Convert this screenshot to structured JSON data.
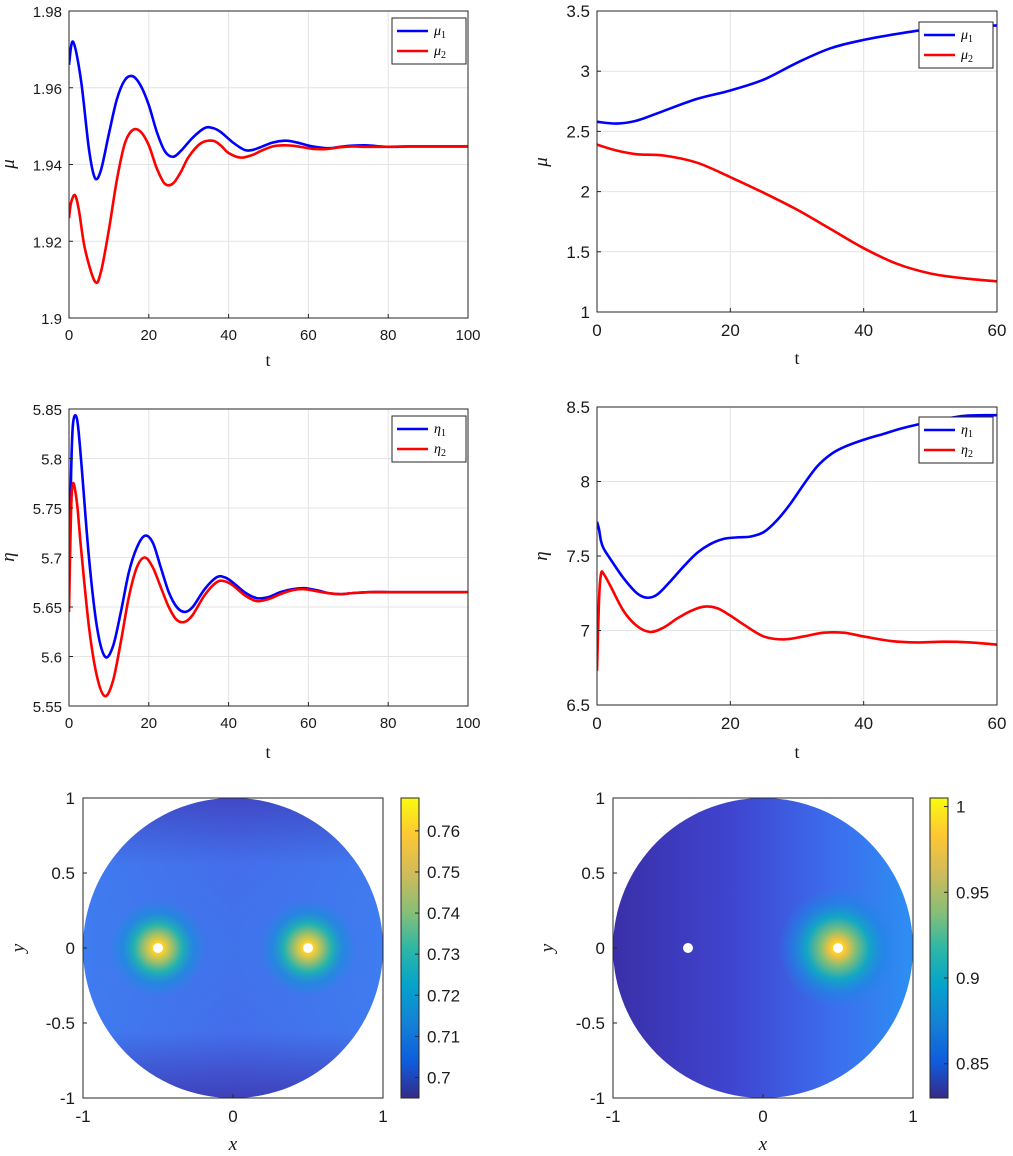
{
  "chart_data": [
    {
      "type": "line",
      "panel": "top-left",
      "xlabel": "t",
      "ylabel": "μ",
      "xlim": [
        0,
        100
      ],
      "ylim": [
        1.9,
        1.98
      ],
      "xticks": [
        "0",
        "20",
        "40",
        "60",
        "80",
        "100"
      ],
      "yticks": [
        "1.9",
        "1.92",
        "1.94",
        "1.96",
        "1.98"
      ],
      "legend_position": "top-right",
      "grid": true,
      "series": [
        {
          "name": "μ",
          "sub": "1",
          "color": "#0000ff",
          "x": [
            0,
            1,
            3,
            5,
            6.5,
            8,
            10,
            12,
            14,
            16,
            18,
            20,
            22,
            24,
            26,
            28,
            31,
            34,
            36,
            38,
            41,
            44,
            46,
            48,
            51,
            54,
            56,
            58,
            61,
            64,
            66,
            68,
            71,
            74,
            76,
            78,
            81,
            85,
            90,
            95,
            100
          ],
          "values": [
            1.966,
            1.972,
            1.962,
            1.944,
            1.9365,
            1.9385,
            1.948,
            1.957,
            1.962,
            1.963,
            1.9605,
            1.9555,
            1.9485,
            1.9435,
            1.942,
            1.9435,
            1.947,
            1.9495,
            1.9495,
            1.9485,
            1.9458,
            1.9438,
            1.9438,
            1.9445,
            1.9457,
            1.9462,
            1.946,
            1.9455,
            1.9447,
            1.9443,
            1.9443,
            1.9446,
            1.9449,
            1.945,
            1.9449,
            1.9447,
            1.9446,
            1.9447,
            1.9447,
            1.9447,
            1.9447
          ]
        },
        {
          "name": "μ",
          "sub": "2",
          "color": "#ff0000",
          "x": [
            0,
            0.5,
            1.5,
            2.5,
            4,
            6.5,
            8,
            10,
            12,
            14,
            16,
            18,
            20,
            22,
            24,
            26,
            28,
            30,
            33,
            36,
            38,
            40,
            43,
            46,
            48,
            51,
            54,
            56,
            58,
            61,
            64,
            66,
            68,
            71,
            74,
            76,
            80,
            85,
            90,
            95,
            100
          ],
          "values": [
            1.926,
            1.93,
            1.932,
            1.928,
            1.918,
            1.9095,
            1.912,
            1.923,
            1.936,
            1.9455,
            1.949,
            1.9485,
            1.945,
            1.939,
            1.935,
            1.935,
            1.938,
            1.942,
            1.9455,
            1.9462,
            1.945,
            1.943,
            1.9418,
            1.9425,
            1.9435,
            1.9447,
            1.945,
            1.9449,
            1.9446,
            1.9441,
            1.944,
            1.9442,
            1.9445,
            1.9447,
            1.9446,
            1.9446,
            1.9446,
            1.9447,
            1.9447,
            1.9447,
            1.9447
          ]
        }
      ]
    },
    {
      "type": "line",
      "panel": "top-right",
      "xlabel": "t",
      "ylabel": "μ",
      "xlim": [
        0,
        60
      ],
      "ylim": [
        1,
        3.5
      ],
      "xticks": [
        "0",
        "20",
        "40",
        "60"
      ],
      "yticks": [
        "1",
        "1.5",
        "2",
        "2.5",
        "3",
        "3.5"
      ],
      "legend_position": "top-right",
      "grid": true,
      "series": [
        {
          "name": "μ",
          "sub": "1",
          "color": "#0000ff",
          "x": [
            0,
            3,
            6,
            10,
            15,
            20,
            25,
            30,
            35,
            40,
            45,
            50,
            55,
            60
          ],
          "values": [
            2.58,
            2.565,
            2.59,
            2.67,
            2.77,
            2.84,
            2.93,
            3.07,
            3.19,
            3.26,
            3.31,
            3.35,
            3.37,
            3.38
          ]
        },
        {
          "name": "μ",
          "sub": "2",
          "color": "#ff0000",
          "x": [
            0,
            3,
            6,
            10,
            15,
            20,
            25,
            30,
            35,
            40,
            45,
            50,
            55,
            60
          ],
          "values": [
            2.39,
            2.34,
            2.31,
            2.3,
            2.24,
            2.12,
            1.99,
            1.85,
            1.69,
            1.53,
            1.4,
            1.32,
            1.28,
            1.255
          ]
        }
      ]
    },
    {
      "type": "line",
      "panel": "middle-left",
      "xlabel": "t",
      "ylabel": "η",
      "xlim": [
        0,
        100
      ],
      "ylim": [
        5.55,
        5.85
      ],
      "xticks": [
        "0",
        "20",
        "40",
        "60",
        "80",
        "100"
      ],
      "yticks": [
        "5.55",
        "5.6",
        "5.65",
        "5.7",
        "5.75",
        "5.8",
        "5.85"
      ],
      "legend_position": "top-right",
      "grid": true,
      "series": [
        {
          "name": "η",
          "sub": "1",
          "color": "#0000ff",
          "x": [
            0,
            0.5,
            1,
            2,
            3,
            5,
            7,
            9,
            11,
            13,
            15,
            17,
            19,
            21,
            23,
            25,
            27,
            29,
            31,
            34,
            37,
            39,
            41,
            44,
            47,
            50,
            53,
            56,
            59,
            62,
            65,
            68,
            71,
            75,
            80,
            85,
            90,
            95,
            100
          ],
          "values": [
            5.66,
            5.78,
            5.835,
            5.84,
            5.8,
            5.7,
            5.63,
            5.6,
            5.61,
            5.645,
            5.685,
            5.71,
            5.722,
            5.715,
            5.69,
            5.665,
            5.65,
            5.645,
            5.65,
            5.668,
            5.68,
            5.68,
            5.675,
            5.665,
            5.659,
            5.66,
            5.665,
            5.668,
            5.669,
            5.667,
            5.664,
            5.663,
            5.664,
            5.665,
            5.665,
            5.665,
            5.665,
            5.665,
            5.665
          ]
        },
        {
          "name": "η",
          "sub": "2",
          "color": "#ff0000",
          "x": [
            0,
            0.5,
            1,
            2,
            3,
            5,
            7,
            9,
            11,
            13,
            15,
            17,
            19,
            21,
            23,
            25,
            27,
            29,
            31,
            34,
            37,
            39,
            41,
            44,
            47,
            50,
            53,
            56,
            59,
            62,
            65,
            68,
            71,
            75,
            80,
            85,
            90,
            95,
            100
          ],
          "values": [
            5.645,
            5.745,
            5.775,
            5.755,
            5.71,
            5.63,
            5.58,
            5.56,
            5.575,
            5.615,
            5.66,
            5.69,
            5.7,
            5.69,
            5.67,
            5.65,
            5.637,
            5.635,
            5.642,
            5.662,
            5.675,
            5.676,
            5.672,
            5.662,
            5.656,
            5.658,
            5.663,
            5.667,
            5.668,
            5.666,
            5.664,
            5.663,
            5.664,
            5.665,
            5.665,
            5.665,
            5.665,
            5.665,
            5.665
          ]
        }
      ]
    },
    {
      "type": "line",
      "panel": "middle-right",
      "xlabel": "t",
      "ylabel": "η",
      "xlim": [
        0,
        60
      ],
      "ylim": [
        6.5,
        8.5
      ],
      "xticks": [
        "0",
        "20",
        "40",
        "60"
      ],
      "yticks": [
        "6.5",
        "7",
        "7.5",
        "8",
        "8.5"
      ],
      "legend_position": "top-right",
      "grid": true,
      "series": [
        {
          "name": "η",
          "sub": "1",
          "color": "#0000ff",
          "x": [
            0,
            0.3,
            0.6,
            1,
            2,
            4,
            6,
            7.5,
            9,
            11,
            13,
            15,
            17,
            19,
            21,
            23,
            25,
            27,
            29,
            31,
            33,
            35,
            37,
            40,
            43,
            46,
            50,
            55,
            60
          ],
          "values": [
            7.73,
            7.68,
            7.6,
            7.55,
            7.48,
            7.35,
            7.25,
            7.22,
            7.24,
            7.33,
            7.43,
            7.52,
            7.58,
            7.615,
            7.625,
            7.63,
            7.66,
            7.74,
            7.85,
            7.98,
            8.1,
            8.18,
            8.23,
            8.28,
            8.32,
            8.36,
            8.4,
            8.44,
            8.445
          ]
        },
        {
          "name": "η",
          "sub": "2",
          "color": "#ff0000",
          "x": [
            0,
            0.3,
            0.6,
            1,
            2,
            4,
            6,
            8,
            10,
            12,
            14,
            16,
            18,
            20,
            22,
            25,
            28,
            31,
            34,
            37,
            40,
            44,
            48,
            52,
            56,
            60
          ],
          "values": [
            6.73,
            7.2,
            7.38,
            7.38,
            7.3,
            7.13,
            7.03,
            6.99,
            7.02,
            7.08,
            7.13,
            7.16,
            7.15,
            7.1,
            7.04,
            6.96,
            6.94,
            6.96,
            6.985,
            6.985,
            6.96,
            6.93,
            6.92,
            6.925,
            6.92,
            6.905
          ]
        }
      ]
    },
    {
      "type": "heatmap",
      "panel": "bottom-left",
      "xlabel": "x",
      "ylabel": "y",
      "xlim": [
        -1,
        1
      ],
      "ylim": [
        -1,
        1
      ],
      "xticks": [
        "-1",
        "0",
        "1"
      ],
      "yticks": [
        "-1",
        "-0.5",
        "0",
        "0.5",
        "1"
      ],
      "colorbar_ticks": [
        "0.7",
        "0.71",
        "0.72",
        "0.73",
        "0.74",
        "0.75",
        "0.76"
      ],
      "colorbar_range": [
        0.695,
        0.768
      ],
      "singularities": [
        [
          -0.5,
          0
        ],
        [
          0.5,
          0
        ]
      ]
    },
    {
      "type": "heatmap",
      "panel": "bottom-right",
      "xlabel": "x",
      "ylabel": "y",
      "xlim": [
        -1,
        1
      ],
      "ylim": [
        -1,
        1
      ],
      "xticks": [
        "-1",
        "0",
        "1"
      ],
      "yticks": [
        "-1",
        "-0.5",
        "0",
        "0.5",
        "1"
      ],
      "colorbar_ticks": [
        "0.85",
        "0.9",
        "0.95",
        "1"
      ],
      "colorbar_range": [
        0.83,
        1.005
      ],
      "singularities": [
        [
          -0.5,
          0
        ],
        [
          0.5,
          0
        ]
      ]
    }
  ]
}
